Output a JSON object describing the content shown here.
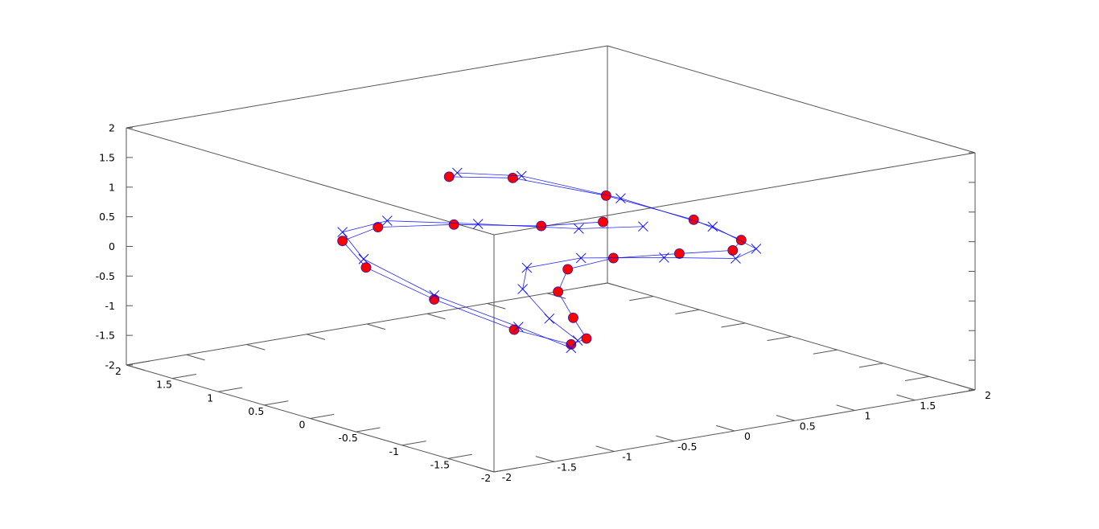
{
  "chart_data": {
    "type": "line",
    "projection": "3d",
    "xlim": [
      -2,
      2
    ],
    "ylim": [
      -2,
      2
    ],
    "zlim": [
      -2,
      2
    ],
    "grid": false,
    "border": "full box",
    "x_ticks": [
      "-2",
      "-1.5",
      "-1",
      "-0.5",
      "0",
      "0.5",
      "1",
      "1.5",
      "2"
    ],
    "y_ticks": [
      "-2",
      "-1.5",
      "-1",
      "-0.5",
      "0",
      "0.5",
      "1",
      "1.5",
      "2"
    ],
    "z_ticks": [
      "-2",
      "-1.5",
      "-1",
      "-0.5",
      "0",
      "0.5",
      "1",
      "1.5",
      "2"
    ],
    "series": [
      {
        "marker": "filled-circle",
        "marker_color": "#ff0000",
        "line_color": "#0000ff",
        "points": [
          [
            0.21,
            1.38,
            0.69
          ],
          [
            0.64,
            1.25,
            0.58
          ],
          [
            1.11,
            0.85,
            0.3
          ],
          [
            1.38,
            0.25,
            0.07
          ],
          [
            1.37,
            -0.28,
            -0.03
          ],
          [
            0.52,
            -1.3,
            0.55
          ],
          [
            0.0,
            -1.4,
            0.72
          ],
          [
            -0.48,
            -1.31,
            0.77
          ],
          [
            -0.76,
            -1.18,
            0.62
          ],
          [
            -0.81,
            -1.14,
            0.24
          ],
          [
            -0.73,
            -1.2,
            -0.2
          ],
          [
            -0.65,
            -1.24,
            -0.56
          ],
          [
            -0.74,
            -1.19,
            -0.65
          ],
          [
            -1.03,
            -0.95,
            -0.41
          ],
          [
            -1.32,
            -0.46,
            -0.02
          ],
          [
            -1.39,
            0.19,
            0.25
          ],
          [
            -1.25,
            0.63,
            0.45
          ],
          [
            -0.42,
            1.33,
            0.08
          ],
          [
            0.25,
            1.38,
            -0.13
          ],
          [
            0.8,
            1.15,
            -0.24
          ],
          [
            1.1,
            0.87,
            -0.15
          ]
        ]
      },
      {
        "marker": "cross",
        "marker_color": "#0000ff",
        "line_color": "#0000ff",
        "points": [
          [
            0.27,
            1.37,
            0.74
          ],
          [
            0.69,
            1.22,
            0.61
          ],
          [
            1.17,
            0.77,
            0.27
          ],
          [
            1.4,
            0.07,
            0.03
          ],
          [
            1.28,
            -0.56,
            -0.02
          ],
          [
            0.56,
            -1.28,
            0.39
          ],
          [
            -0.12,
            -1.39,
            0.69
          ],
          [
            -0.68,
            -1.22,
            0.8
          ],
          [
            -0.97,
            -1.01,
            0.64
          ],
          [
            -0.99,
            -0.99,
            0.28
          ],
          [
            -0.86,
            -1.11,
            -0.21
          ],
          [
            -0.7,
            -1.21,
            -0.59
          ],
          [
            -0.74,
            -1.19,
            -0.71
          ],
          [
            -1.01,
            -0.97,
            -0.36
          ],
          [
            -1.32,
            -0.46,
            0.05
          ],
          [
            -1.38,
            0.23,
            0.37
          ],
          [
            -1.25,
            0.63,
            0.6
          ],
          [
            -0.32,
            1.36,
            0.14
          ],
          [
            0.42,
            1.34,
            -0.16
          ],
          [
            0.99,
            0.99,
            -0.28
          ],
          [
            1.25,
            0.63,
            -0.17
          ]
        ]
      }
    ]
  }
}
